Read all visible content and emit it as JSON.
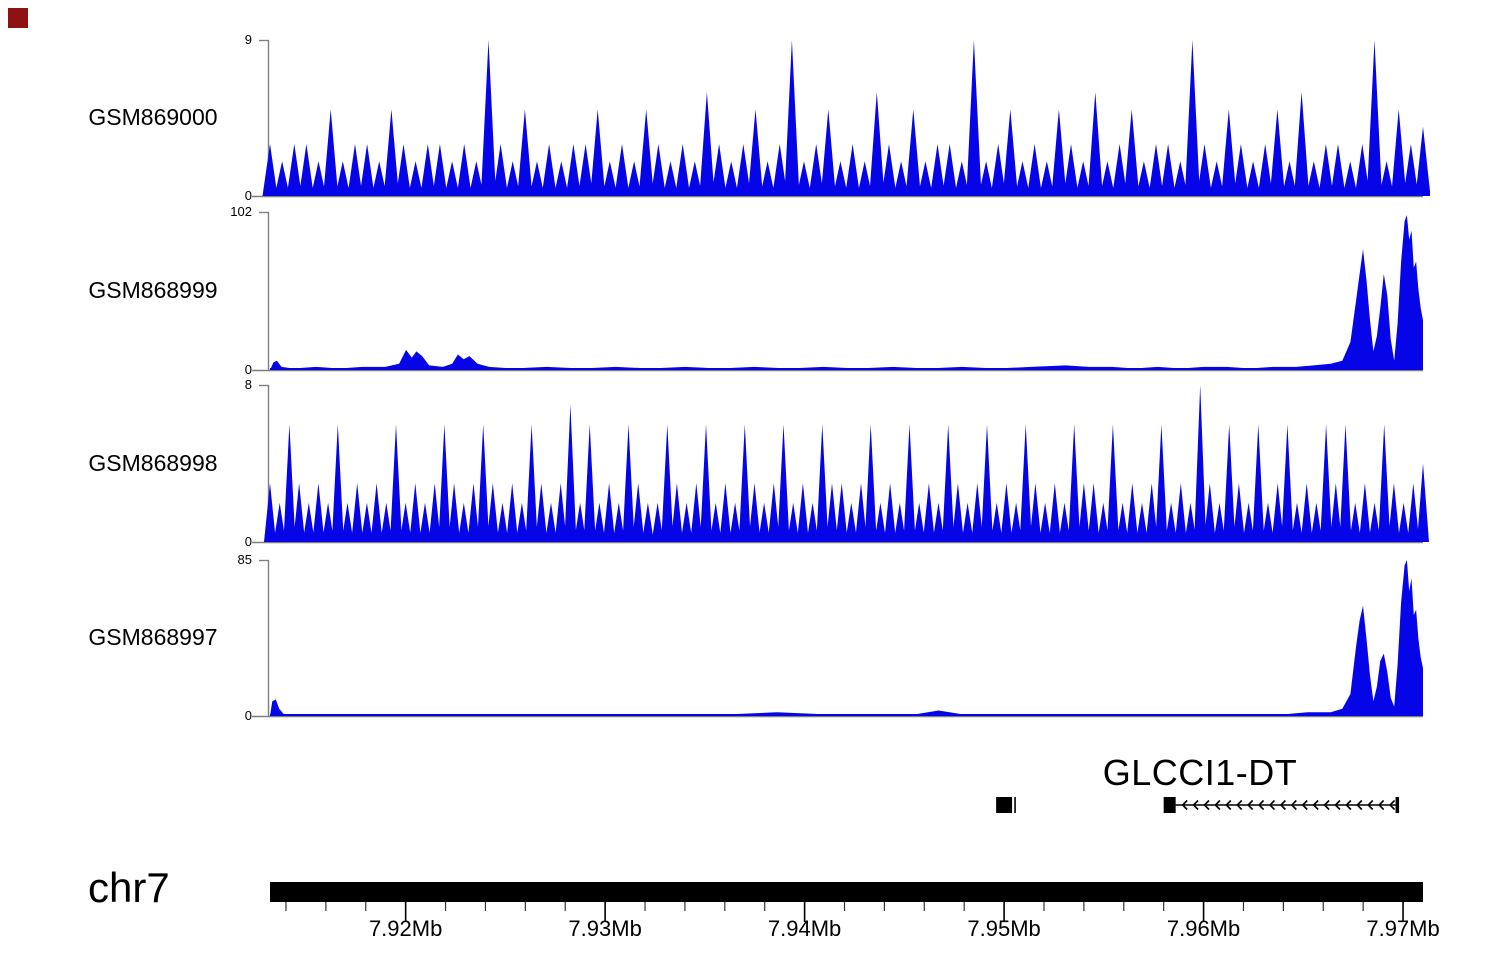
{
  "marker": {
    "color": "#8f1212"
  },
  "colors": {
    "signal_blue": "#0505e8",
    "axis_gray": "#7f7f7f",
    "ink_black": "#000000"
  },
  "region": {
    "chrom_label": "chr7",
    "start_mb": 7.9132,
    "end_mb": 7.971
  },
  "chart_data": [
    {
      "type": "area",
      "name": "GSM869000",
      "ylabel_max": "9",
      "ylabel_zero": "0",
      "ymax": 9,
      "encoding": "spike-digits",
      "note": "dense triangular read-pileup spikes; digit = peak height at evenly spaced positions across 7.9132-7.9710 Mb",
      "spikes": "323325233253233232932523233523253232632352392352326325233292352325326235233293253235262332392534"
    },
    {
      "type": "area",
      "name": "GSM868999",
      "ylabel_max": "102",
      "ylabel_zero": "0",
      "ymax": 102,
      "encoding": "points",
      "points": [
        [
          0,
          0
        ],
        [
          0.003,
          5
        ],
        [
          0.006,
          6
        ],
        [
          0.01,
          2
        ],
        [
          0.02,
          1
        ],
        [
          0.04,
          2
        ],
        [
          0.06,
          1
        ],
        [
          0.08,
          2
        ],
        [
          0.1,
          2
        ],
        [
          0.112,
          4
        ],
        [
          0.118,
          13
        ],
        [
          0.123,
          8
        ],
        [
          0.127,
          12
        ],
        [
          0.132,
          9
        ],
        [
          0.138,
          3
        ],
        [
          0.15,
          2
        ],
        [
          0.158,
          4
        ],
        [
          0.163,
          10
        ],
        [
          0.168,
          7
        ],
        [
          0.173,
          9
        ],
        [
          0.18,
          4
        ],
        [
          0.19,
          2
        ],
        [
          0.21,
          1
        ],
        [
          0.24,
          2
        ],
        [
          0.27,
          1
        ],
        [
          0.3,
          2
        ],
        [
          0.33,
          1
        ],
        [
          0.36,
          2
        ],
        [
          0.39,
          1
        ],
        [
          0.42,
          2
        ],
        [
          0.45,
          1
        ],
        [
          0.48,
          2
        ],
        [
          0.51,
          1
        ],
        [
          0.54,
          2
        ],
        [
          0.57,
          1
        ],
        [
          0.6,
          2
        ],
        [
          0.63,
          1
        ],
        [
          0.66,
          2
        ],
        [
          0.69,
          3
        ],
        [
          0.71,
          2
        ],
        [
          0.73,
          2
        ],
        [
          0.75,
          1
        ],
        [
          0.77,
          2
        ],
        [
          0.79,
          1
        ],
        [
          0.81,
          2
        ],
        [
          0.83,
          2
        ],
        [
          0.85,
          1
        ],
        [
          0.87,
          2
        ],
        [
          0.89,
          2
        ],
        [
          0.905,
          3
        ],
        [
          0.92,
          4
        ],
        [
          0.93,
          6
        ],
        [
          0.937,
          18
        ],
        [
          0.942,
          45
        ],
        [
          0.945,
          62
        ],
        [
          0.948,
          78
        ],
        [
          0.951,
          58
        ],
        [
          0.954,
          32
        ],
        [
          0.957,
          12
        ],
        [
          0.96,
          22
        ],
        [
          0.963,
          40
        ],
        [
          0.966,
          62
        ],
        [
          0.969,
          48
        ],
        [
          0.972,
          20
        ],
        [
          0.975,
          6
        ],
        [
          0.978,
          30
        ],
        [
          0.981,
          70
        ],
        [
          0.984,
          96
        ],
        [
          0.986,
          100
        ],
        [
          0.988,
          84
        ],
        [
          0.99,
          90
        ],
        [
          0.992,
          66
        ],
        [
          0.994,
          70
        ],
        [
          0.996,
          52
        ],
        [
          0.998,
          40
        ],
        [
          1,
          32
        ],
        [
          1,
          0
        ]
      ]
    },
    {
      "type": "area",
      "name": "GSM868998",
      "ylabel_max": "8",
      "ylabel_zero": "0",
      "ymax": 8,
      "encoding": "spike-digits",
      "spikes": "326323262323262323632363232632372623263226323623263236232633236232623263236232632326332623236232832632623623263623263234"
    },
    {
      "type": "area",
      "name": "GSM868997",
      "ylabel_max": "85",
      "ylabel_zero": "0",
      "ymax": 85,
      "encoding": "points",
      "points": [
        [
          0,
          0
        ],
        [
          0.002,
          8
        ],
        [
          0.005,
          9
        ],
        [
          0.008,
          4
        ],
        [
          0.012,
          1
        ],
        [
          0.05,
          1
        ],
        [
          0.1,
          1
        ],
        [
          0.15,
          1
        ],
        [
          0.2,
          1
        ],
        [
          0.25,
          1
        ],
        [
          0.3,
          1
        ],
        [
          0.35,
          1
        ],
        [
          0.4,
          1
        ],
        [
          0.44,
          2
        ],
        [
          0.48,
          1
        ],
        [
          0.52,
          1
        ],
        [
          0.56,
          1
        ],
        [
          0.58,
          3
        ],
        [
          0.6,
          1
        ],
        [
          0.65,
          1
        ],
        [
          0.7,
          1
        ],
        [
          0.75,
          1
        ],
        [
          0.8,
          1
        ],
        [
          0.85,
          1
        ],
        [
          0.88,
          1
        ],
        [
          0.9,
          2
        ],
        [
          0.92,
          2
        ],
        [
          0.93,
          4
        ],
        [
          0.937,
          12
        ],
        [
          0.942,
          38
        ],
        [
          0.945,
          52
        ],
        [
          0.948,
          60
        ],
        [
          0.951,
          42
        ],
        [
          0.954,
          22
        ],
        [
          0.957,
          8
        ],
        [
          0.96,
          16
        ],
        [
          0.963,
          30
        ],
        [
          0.966,
          34
        ],
        [
          0.969,
          24
        ],
        [
          0.972,
          10
        ],
        [
          0.975,
          5
        ],
        [
          0.978,
          28
        ],
        [
          0.981,
          62
        ],
        [
          0.984,
          82
        ],
        [
          0.986,
          85
        ],
        [
          0.988,
          68
        ],
        [
          0.99,
          75
        ],
        [
          0.992,
          55
        ],
        [
          0.994,
          58
        ],
        [
          0.996,
          42
        ],
        [
          0.998,
          32
        ],
        [
          1,
          26
        ],
        [
          1,
          0
        ]
      ]
    }
  ],
  "gene_row": {
    "label": "GLCCI1-DT",
    "features": [
      {
        "kind": "box-with-tick",
        "start_mb": 7.9496,
        "end_mb": 7.9504,
        "tick_mb": 7.95055
      },
      {
        "kind": "transcript",
        "gene": "GLCCI1-DT",
        "strand": "-",
        "exon_start_mb": 7.958,
        "exon_end_mb": 7.9586,
        "end_mb": 7.9697,
        "arrow_count": 20
      }
    ]
  },
  "ruler": {
    "major_ticks": [
      {
        "mb": 7.92,
        "label": "7.92Mb"
      },
      {
        "mb": 7.93,
        "label": "7.93Mb"
      },
      {
        "mb": 7.94,
        "label": "7.94Mb"
      },
      {
        "mb": 7.95,
        "label": "7.95Mb"
      },
      {
        "mb": 7.96,
        "label": "7.96Mb"
      },
      {
        "mb": 7.97,
        "label": "7.97Mb"
      }
    ],
    "minor_start_mb": 7.914,
    "minor_end_mb": 7.97,
    "minor_step_mb": 0.002
  }
}
